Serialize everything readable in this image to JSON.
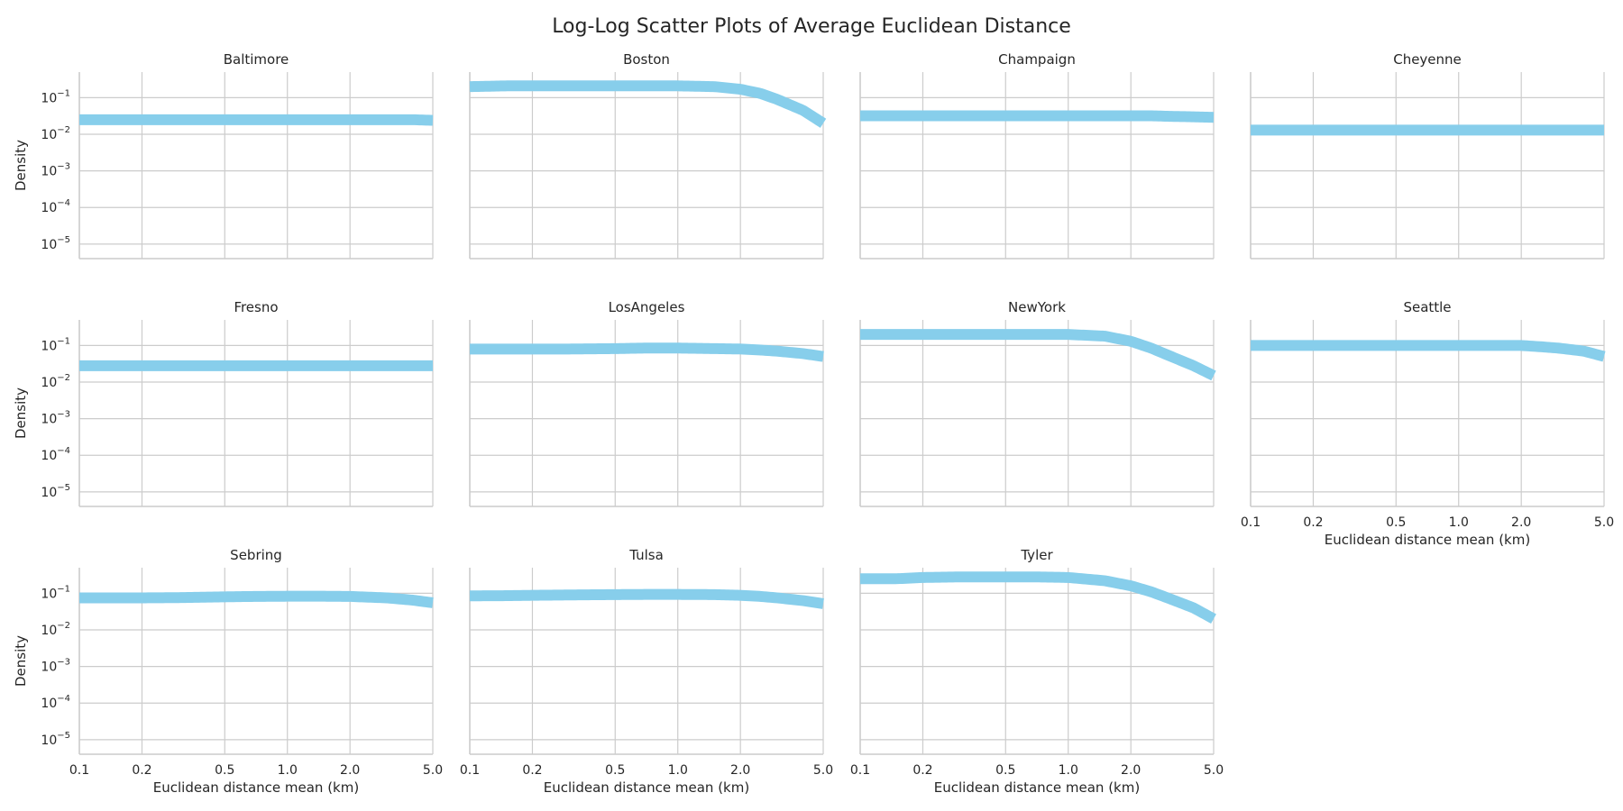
{
  "figure": {
    "title": "Log-Log Scatter Plots of Average Euclidean Distance",
    "band_color": "#87ceeb",
    "grid_color": "#cccccc"
  },
  "chart_data": {
    "type": "scatter",
    "title": "Log-Log Scatter Plots of Average Euclidean Distance",
    "x_scale": "log",
    "y_scale": "log",
    "xlim": [
      0.1,
      5.0
    ],
    "ylim": [
      4e-06,
      0.5
    ],
    "x_ticks": [
      0.1,
      0.2,
      0.5,
      1.0,
      2.0,
      5.0
    ],
    "x_tick_labels": [
      "0.1",
      "0.2",
      "0.5",
      "1.0",
      "2.0",
      "5.0"
    ],
    "y_ticks": [
      0.1,
      0.01,
      0.001,
      0.0001,
      1e-05
    ],
    "y_tick_labels": [
      {
        "base": "10",
        "exp": "−1"
      },
      {
        "base": "10",
        "exp": "−2"
      },
      {
        "base": "10",
        "exp": "−3"
      },
      {
        "base": "10",
        "exp": "−4"
      },
      {
        "base": "10",
        "exp": "−5"
      }
    ],
    "xlabel": "Euclidean distance mean (km)",
    "ylabel": "Density",
    "grid": true,
    "x_points": [
      0.1,
      0.15,
      0.2,
      0.3,
      0.5,
      0.7,
      1.0,
      1.5,
      2.0,
      2.5,
      3.0,
      4.0,
      5.0
    ],
    "panels": [
      {
        "title": "Baltimore",
        "y": [
          0.025,
          0.025,
          0.025,
          0.025,
          0.025,
          0.025,
          0.025,
          0.025,
          0.025,
          0.025,
          0.025,
          0.025,
          0.024
        ]
      },
      {
        "title": "Boston",
        "y": [
          0.2,
          0.21,
          0.21,
          0.21,
          0.21,
          0.21,
          0.21,
          0.2,
          0.17,
          0.13,
          0.09,
          0.045,
          0.02
        ]
      },
      {
        "title": "Champaign",
        "y": [
          0.032,
          0.032,
          0.032,
          0.032,
          0.032,
          0.032,
          0.032,
          0.032,
          0.032,
          0.032,
          0.031,
          0.03,
          0.029
        ]
      },
      {
        "title": "Cheyenne",
        "y": [
          0.013,
          0.013,
          0.013,
          0.013,
          0.013,
          0.013,
          0.013,
          0.013,
          0.013,
          0.013,
          0.013,
          0.013,
          0.013
        ]
      },
      {
        "title": "Fresno",
        "y": [
          0.028,
          0.028,
          0.028,
          0.028,
          0.028,
          0.028,
          0.028,
          0.028,
          0.028,
          0.028,
          0.028,
          0.028,
          0.028
        ]
      },
      {
        "title": "LosAngeles",
        "y": [
          0.08,
          0.08,
          0.08,
          0.08,
          0.082,
          0.085,
          0.085,
          0.082,
          0.08,
          0.075,
          0.07,
          0.06,
          0.05
        ]
      },
      {
        "title": "NewYork",
        "y": [
          0.2,
          0.2,
          0.2,
          0.2,
          0.2,
          0.2,
          0.2,
          0.18,
          0.13,
          0.085,
          0.055,
          0.028,
          0.015
        ]
      },
      {
        "title": "Seattle",
        "y": [
          0.1,
          0.1,
          0.1,
          0.1,
          0.1,
          0.1,
          0.1,
          0.1,
          0.1,
          0.092,
          0.085,
          0.07,
          0.05
        ]
      },
      {
        "title": "Sebring",
        "y": [
          0.075,
          0.075,
          0.075,
          0.076,
          0.08,
          0.082,
          0.083,
          0.083,
          0.082,
          0.078,
          0.075,
          0.065,
          0.055
        ]
      },
      {
        "title": "Tulsa",
        "y": [
          0.085,
          0.086,
          0.088,
          0.09,
          0.092,
          0.093,
          0.093,
          0.092,
          0.088,
          0.082,
          0.075,
          0.063,
          0.052
        ]
      },
      {
        "title": "Tyler",
        "y": [
          0.25,
          0.25,
          0.27,
          0.28,
          0.28,
          0.28,
          0.27,
          0.22,
          0.16,
          0.11,
          0.075,
          0.04,
          0.02
        ]
      }
    ]
  }
}
